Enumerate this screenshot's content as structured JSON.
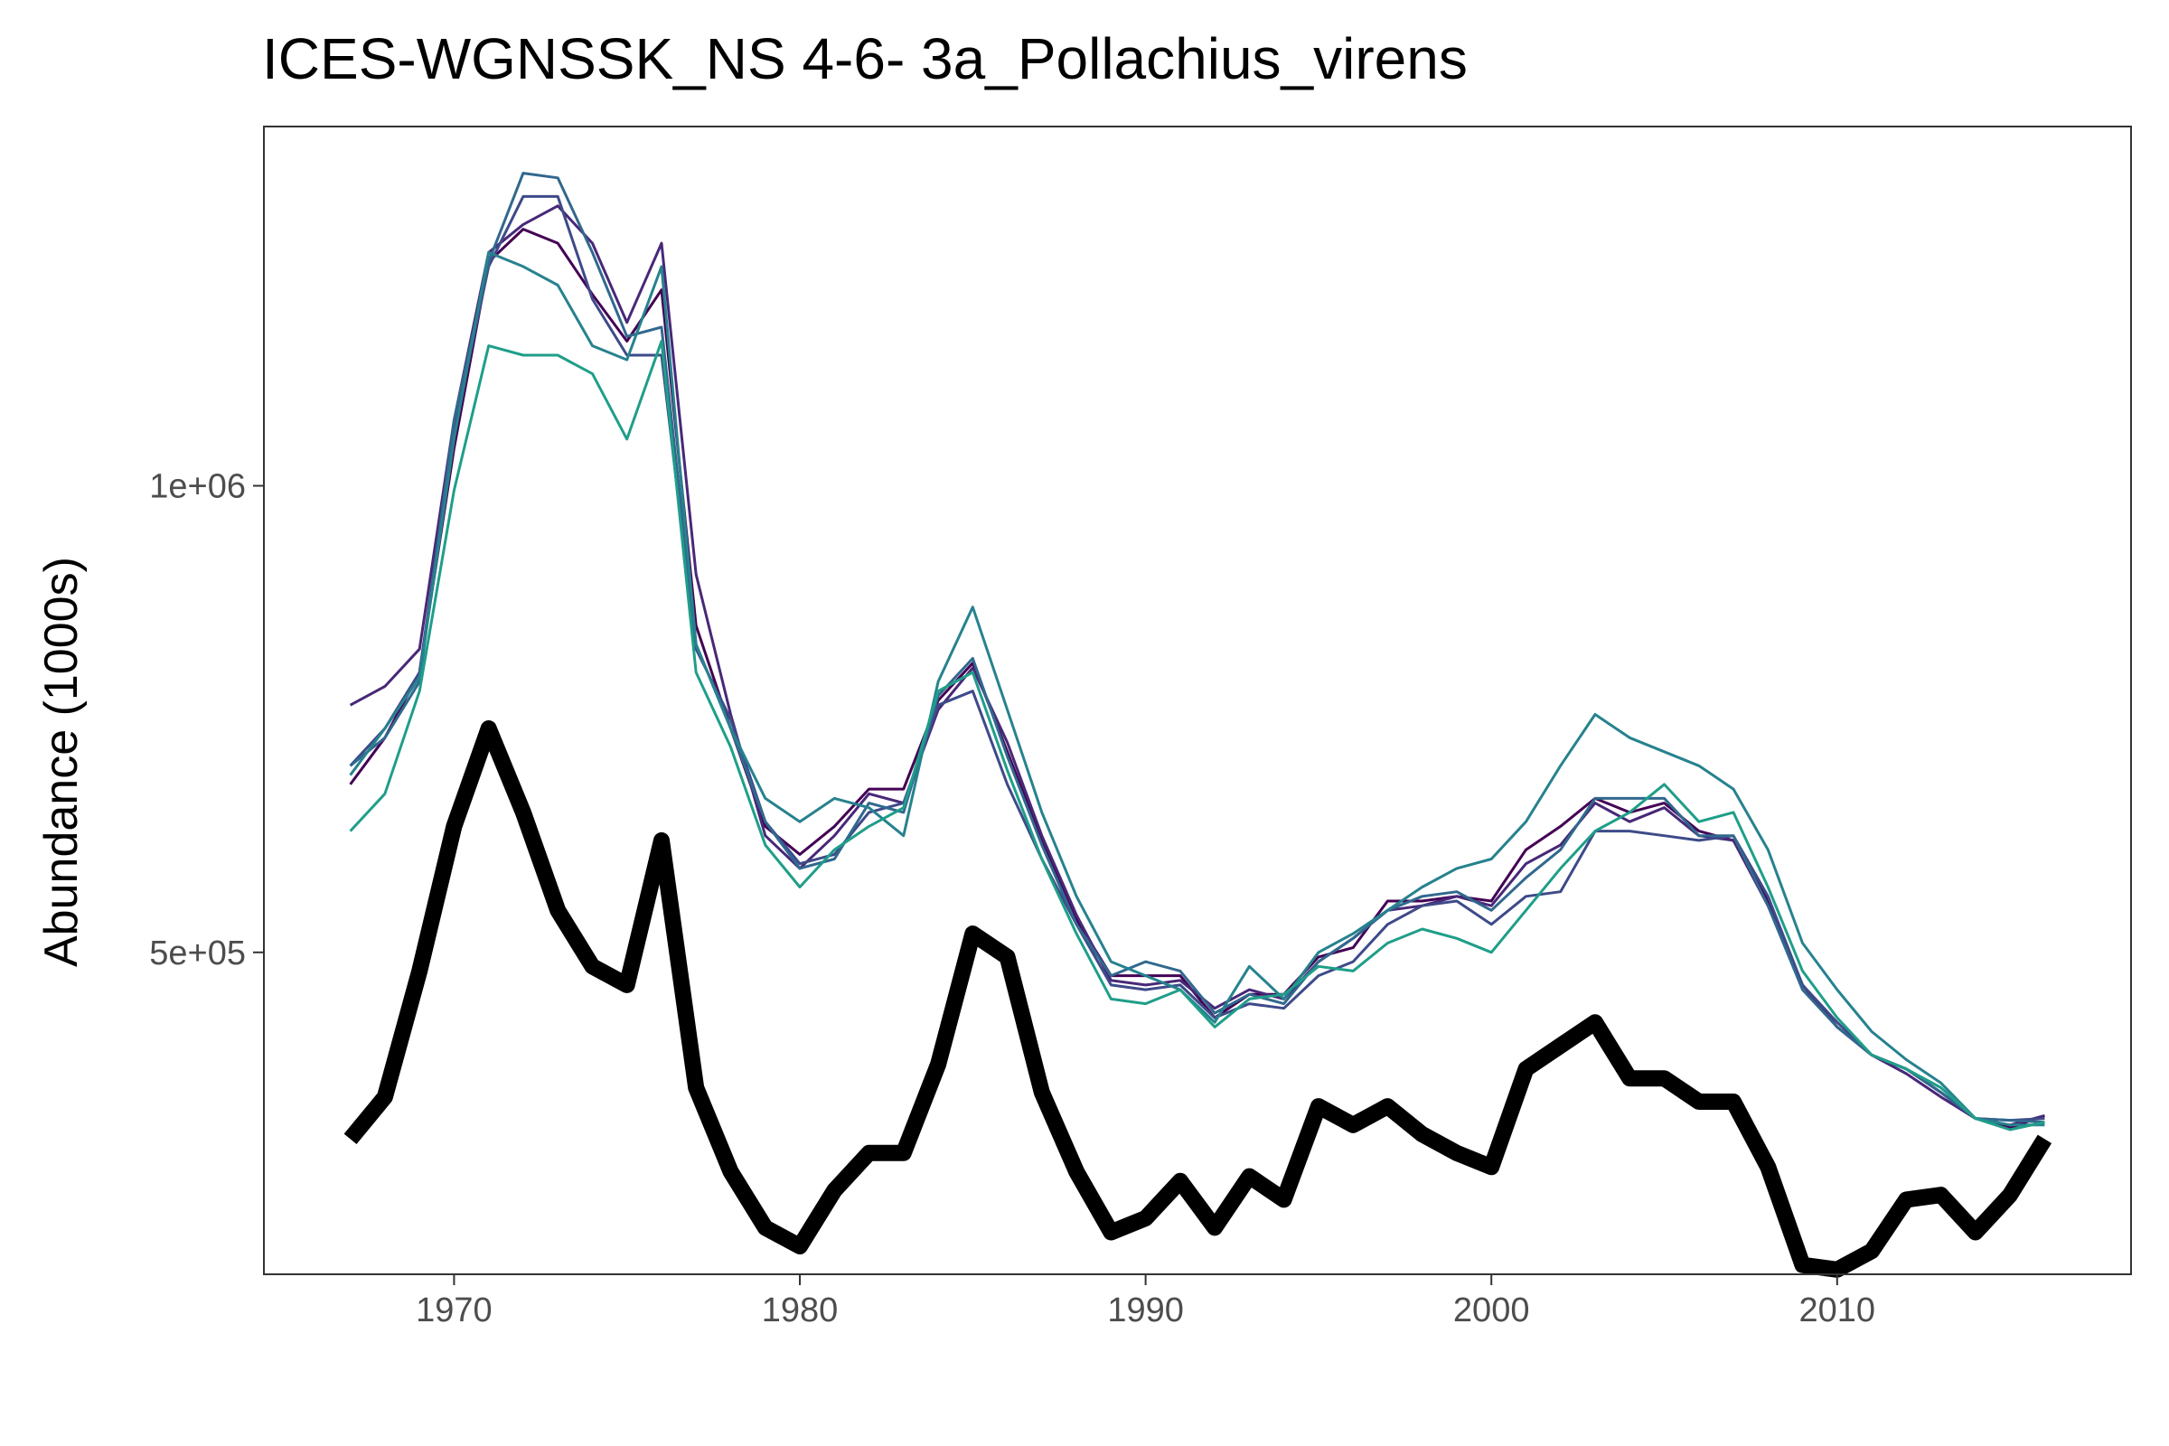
{
  "chart_data": {
    "type": "line",
    "title": "ICES-WGNSSK_NS 4-6- 3a_Pollachius_virens",
    "xlabel": "",
    "ylabel": "Abundance (1000s)",
    "xlim": [
      1964.5,
      2018.5
    ],
    "ylim": [
      155000,
      1385000
    ],
    "x_ticks": [
      1970,
      1980,
      1990,
      2000,
      2010
    ],
    "y_ticks": [
      {
        "value": 500000,
        "label": "5e+05"
      },
      {
        "value": 1000000,
        "label": "1e+06"
      }
    ],
    "grid": false,
    "legend": "none",
    "x": [
      1967,
      1968,
      1969,
      1970,
      1971,
      1972,
      1973,
      1974,
      1975,
      1976,
      1977,
      1978,
      1979,
      1980,
      1981,
      1982,
      1983,
      1984,
      1985,
      1986,
      1987,
      1988,
      1989,
      1990,
      1991,
      1992,
      1993,
      1994,
      1995,
      1996,
      1997,
      1998,
      1999,
      2000,
      2001,
      2002,
      2003,
      2004,
      2005,
      2006,
      2007,
      2008,
      2009,
      2010,
      2011,
      2012,
      2013,
      2014,
      2015,
      2016
    ],
    "series": [
      {
        "color": "#440154",
        "width": 3,
        "values": [
          680000,
          730000,
          800000,
          1040000,
          1240000,
          1275000,
          1260000,
          1205000,
          1155000,
          1210000,
          850000,
          740000,
          635000,
          605000,
          635000,
          675000,
          675000,
          770000,
          810000,
          715000,
          620000,
          535000,
          475000,
          475000,
          475000,
          430000,
          455000,
          455000,
          495000,
          505000,
          555000,
          555000,
          560000,
          555000,
          610000,
          635000,
          665000,
          650000,
          660000,
          630000,
          620000,
          555000,
          465000,
          420000,
          390000,
          375000,
          350000,
          322000,
          312000,
          325000
        ]
      },
      {
        "color": "#482878",
        "width": 3,
        "values": [
          765000,
          785000,
          825000,
          1070000,
          1250000,
          1280000,
          1300000,
          1260000,
          1175000,
          1260000,
          905000,
          755000,
          625000,
          590000,
          625000,
          670000,
          660000,
          760000,
          805000,
          725000,
          625000,
          540000,
          470000,
          465000,
          470000,
          440000,
          460000,
          450000,
          490000,
          515000,
          545000,
          550000,
          560000,
          550000,
          595000,
          615000,
          660000,
          640000,
          655000,
          625000,
          620000,
          550000,
          465000,
          420000,
          390000,
          370000,
          345000,
          322000,
          315000,
          325000
        ]
      },
      {
        "color": "#3E4A89",
        "width": 3,
        "values": [
          700000,
          740000,
          800000,
          1060000,
          1235000,
          1310000,
          1310000,
          1200000,
          1140000,
          1140000,
          825000,
          750000,
          640000,
          595000,
          605000,
          650000,
          660000,
          765000,
          780000,
          680000,
          600000,
          530000,
          465000,
          460000,
          465000,
          430000,
          445000,
          440000,
          475000,
          490000,
          530000,
          550000,
          555000,
          530000,
          560000,
          565000,
          630000,
          630000,
          625000,
          620000,
          625000,
          560000,
          465000,
          425000,
          390000,
          375000,
          350000,
          322000,
          320000,
          322000
        ]
      },
      {
        "color": "#31688E",
        "width": 3,
        "values": [
          700000,
          730000,
          790000,
          1070000,
          1240000,
          1335000,
          1330000,
          1250000,
          1160000,
          1170000,
          830000,
          740000,
          640000,
          590000,
          600000,
          660000,
          650000,
          775000,
          815000,
          710000,
          615000,
          530000,
          475000,
          490000,
          480000,
          435000,
          455000,
          445000,
          490000,
          515000,
          545000,
          560000,
          565000,
          545000,
          580000,
          610000,
          665000,
          665000,
          665000,
          625000,
          625000,
          550000,
          460000,
          420000,
          390000,
          375000,
          350000,
          322000,
          320000,
          318000
        ]
      },
      {
        "color": "#26828E",
        "width": 3,
        "values": [
          690000,
          740000,
          795000,
          1050000,
          1250000,
          1235000,
          1215000,
          1150000,
          1135000,
          1235000,
          830000,
          740000,
          665000,
          640000,
          665000,
          655000,
          625000,
          790000,
          870000,
          760000,
          650000,
          560000,
          490000,
          475000,
          460000,
          425000,
          485000,
          450000,
          500000,
          520000,
          545000,
          570000,
          590000,
          600000,
          640000,
          700000,
          755000,
          730000,
          715000,
          700000,
          675000,
          610000,
          510000,
          460000,
          415000,
          385000,
          360000,
          322000,
          315000,
          315000
        ]
      },
      {
        "color": "#1F9E89",
        "width": 3,
        "values": [
          630000,
          670000,
          780000,
          995000,
          1150000,
          1140000,
          1140000,
          1120000,
          1050000,
          1155000,
          800000,
          720000,
          615000,
          570000,
          610000,
          635000,
          655000,
          780000,
          800000,
          695000,
          600000,
          520000,
          450000,
          445000,
          460000,
          420000,
          450000,
          455000,
          485000,
          480000,
          510000,
          525000,
          515000,
          500000,
          545000,
          590000,
          630000,
          650000,
          680000,
          640000,
          650000,
          570000,
          480000,
          430000,
          390000,
          375000,
          355000,
          322000,
          310000,
          318000
        ]
      },
      {
        "color": "#000000",
        "width": 18,
        "values": [
          300000,
          345000,
          480000,
          635000,
          740000,
          650000,
          545000,
          485000,
          465000,
          620000,
          355000,
          265000,
          205000,
          185000,
          245000,
          285000,
          285000,
          380000,
          520000,
          495000,
          350000,
          265000,
          200000,
          215000,
          255000,
          205000,
          260000,
          235000,
          335000,
          315000,
          335000,
          305000,
          285000,
          270000,
          375000,
          400000,
          425000,
          365000,
          365000,
          340000,
          340000,
          270000,
          165000,
          160000,
          180000,
          235000,
          240000,
          200000,
          240000,
          300000
        ]
      }
    ]
  }
}
